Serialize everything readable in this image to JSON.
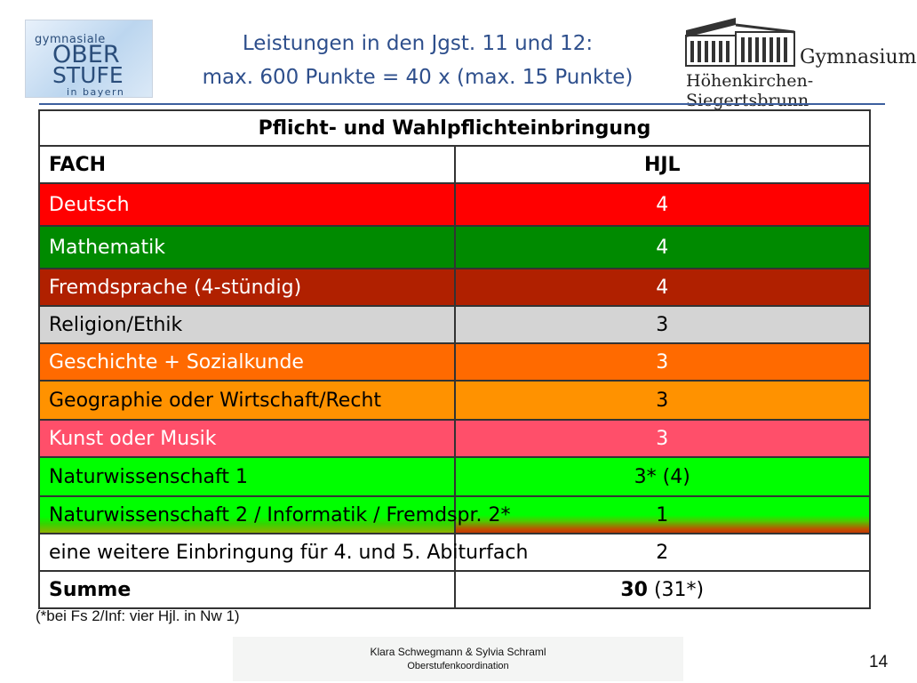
{
  "logo_left": {
    "line1": "gymnasiale",
    "line2": "OBER",
    "line3": "STUFE",
    "line4": "in bayern"
  },
  "title": {
    "line1": "Leistungen in den Jgst. 11 und 12:",
    "line2": "max. 600 Punkte = 40 x (max. 15 Punkte)"
  },
  "logo_right": {
    "line1": "Gymnasium",
    "line2": "Höhenkirchen-Siegertsbrunn"
  },
  "table": {
    "caption": "Pflicht- und Wahlpflichteinbringung",
    "col_subject": "FACH",
    "col_hjl": "HJL",
    "rows": [
      {
        "subject": "Deutsch",
        "hjl": "4",
        "bg": "#ff0000",
        "fg": "#ffffff",
        "height": 48
      },
      {
        "subject": "Mathematik",
        "hjl": "4",
        "bg": "#008a00",
        "fg": "#ffffff",
        "height": 48
      },
      {
        "subject": "Fremdsprache (4-stündig)",
        "hjl": "4",
        "bg": "#b02000",
        "fg": "#ffffff",
        "height": 42
      },
      {
        "subject": "Religion/Ethik",
        "hjl": "3",
        "bg": "#d4d4d4",
        "fg": "#000000",
        "height": 42
      },
      {
        "subject": "Geschichte + Sozialkunde",
        "hjl": "3",
        "bg": "#ff6a00",
        "fg": "#ffffff",
        "height": 42
      },
      {
        "subject": "Geographie oder Wirtschaft/Recht",
        "hjl": "3",
        "bg": "#ff9200",
        "fg": "#000000",
        "height": 44
      },
      {
        "subject": "Kunst oder Musik",
        "hjl": "3",
        "bg": "#ff4f6a",
        "fg": "#ffffff",
        "height": 42
      },
      {
        "subject": "Naturwissenschaft 1",
        "hjl": "3* (4)",
        "bg": "#00ff00",
        "fg": "#000000",
        "height": 44
      },
      {
        "subject": "Naturwissenschaft 2 / Informatik  / Fremdspr. 2*",
        "hjl": "1",
        "bg": "#00ff00",
        "fg": "#000000",
        "height": 42,
        "gradient": true
      },
      {
        "subject": "eine weitere Einbringung für 4. und 5. Abiturfach",
        "hjl": "2",
        "bg": "#ffffff",
        "fg": "#000000",
        "height": 42
      }
    ],
    "sum_label": "Summe",
    "sum_value": "30",
    "sum_extra": " (31*)"
  },
  "footnote": "(*bei Fs 2/Inf: vier Hjl. in Nw 1)",
  "footer": {
    "authors": "Klara Schwegmann & Sylvia Schraml",
    "role": "Oberstufenkoordination"
  },
  "page_number": "14"
}
